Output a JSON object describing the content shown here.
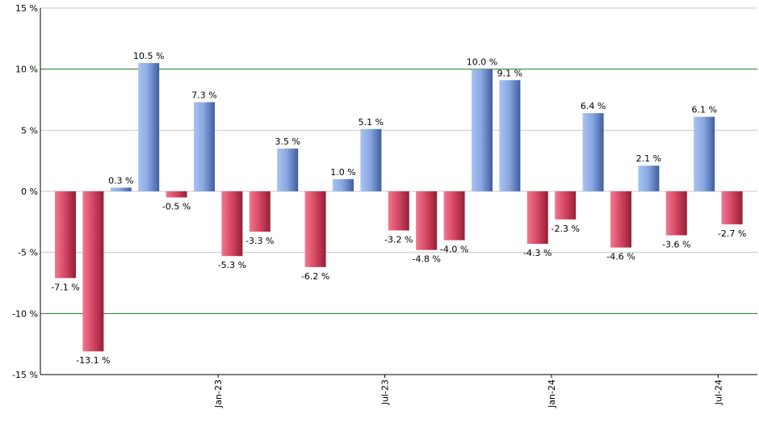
{
  "chart_data": {
    "type": "bar",
    "title": "",
    "xlabel": "",
    "ylabel": "",
    "value_suffix": " %",
    "ylim": [
      -15,
      15
    ],
    "y_ticks": [
      15,
      10,
      5,
      0,
      -5,
      -10,
      -15
    ],
    "y_tick_labels": [
      "15 %",
      "10 %",
      "5 %",
      "0 %",
      "-5 %",
      "-10 %",
      "-15 %"
    ],
    "highlighted_gridlines": [
      10,
      -10
    ],
    "x_tick_labels": [
      {
        "label": "Jan-23",
        "after_index": 5
      },
      {
        "label": "Jul-23",
        "after_index": 11
      },
      {
        "label": "Jan-24",
        "after_index": 17
      },
      {
        "label": "Jul-24",
        "after_index": 23
      }
    ],
    "values": [
      -7.1,
      -13.1,
      0.3,
      10.5,
      -0.5,
      7.3,
      -5.3,
      -3.3,
      3.5,
      -6.2,
      1.0,
      5.1,
      -3.2,
      -4.8,
      -4.0,
      10.0,
      9.1,
      -4.3,
      -2.3,
      6.4,
      -4.6,
      2.1,
      -3.6,
      6.1,
      -2.7
    ],
    "labels": [
      "-7.1 %",
      "-13.1 %",
      "0.3 %",
      "10.5 %",
      "-0.5 %",
      "7.3 %",
      "-5.3 %",
      "-3.3 %",
      "3.5 %",
      "-6.2 %",
      "1.0 %",
      "5.1 %",
      "-3.2 %",
      "-4.8 %",
      "-4.0 %",
      "10.0 %",
      "9.1 %",
      "-4.3 %",
      "-2.3 %",
      "6.4 %",
      "-4.6 %",
      "2.1 %",
      "-3.6 %",
      "6.1 %",
      "-2.7 %"
    ],
    "colors": {
      "positive": "#5b7fc6",
      "positive_light": "#a9c3ef",
      "negative": "#c0304c",
      "negative_light": "#f07890",
      "grid": "#c8c8c8",
      "grid_highlight": "#1a7a1a",
      "axis": "#000000"
    }
  }
}
